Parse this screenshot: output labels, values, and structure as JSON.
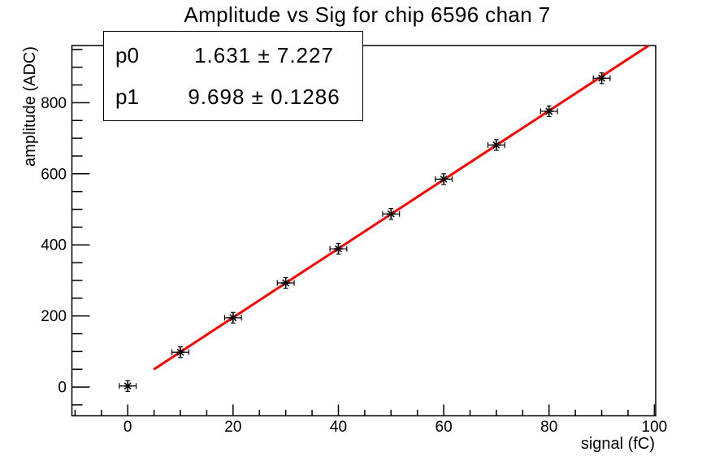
{
  "title": "Amplitude vs Sig for chip 6596 chan 7",
  "stats_box": {
    "rows": [
      {
        "label": "p0",
        "value": "1.631 ± 7.227"
      },
      {
        "label": "p1",
        "value": "9.698 ± 0.1286"
      }
    ]
  },
  "chart_data": {
    "type": "scatter",
    "title": "Amplitude vs Sig for chip 6596 chan 7",
    "xlabel": "signal (fC)",
    "ylabel": "amplitude (ADC)",
    "xlim": [
      -10.6,
      100.25
    ],
    "ylim": [
      -81,
      961
    ],
    "x_major_ticks": [
      0,
      20,
      40,
      60,
      80,
      100
    ],
    "x_minor_step": 5,
    "y_major_ticks": [
      0,
      200,
      400,
      600,
      800
    ],
    "y_minor_step": 50,
    "grid": false,
    "legend": "none",
    "points": {
      "x": [
        0,
        10,
        20,
        30,
        40,
        50,
        60,
        70,
        80,
        90
      ],
      "y": [
        3,
        98,
        195,
        293,
        389,
        487,
        585,
        681,
        776,
        869
      ],
      "x_err": 1.6,
      "y_err": 15,
      "marker": "asterisk-with-error-bars",
      "color": "#000000"
    },
    "fit_line": {
      "type": "linear",
      "p0": 1.631,
      "p1": 9.698,
      "x_range": [
        5.1,
        98.7
      ],
      "color": "#ff0000"
    }
  },
  "colors": {
    "background": "#ffffff",
    "frame": "#000000",
    "fit_line": "#ff0000",
    "marker": "#000000"
  }
}
